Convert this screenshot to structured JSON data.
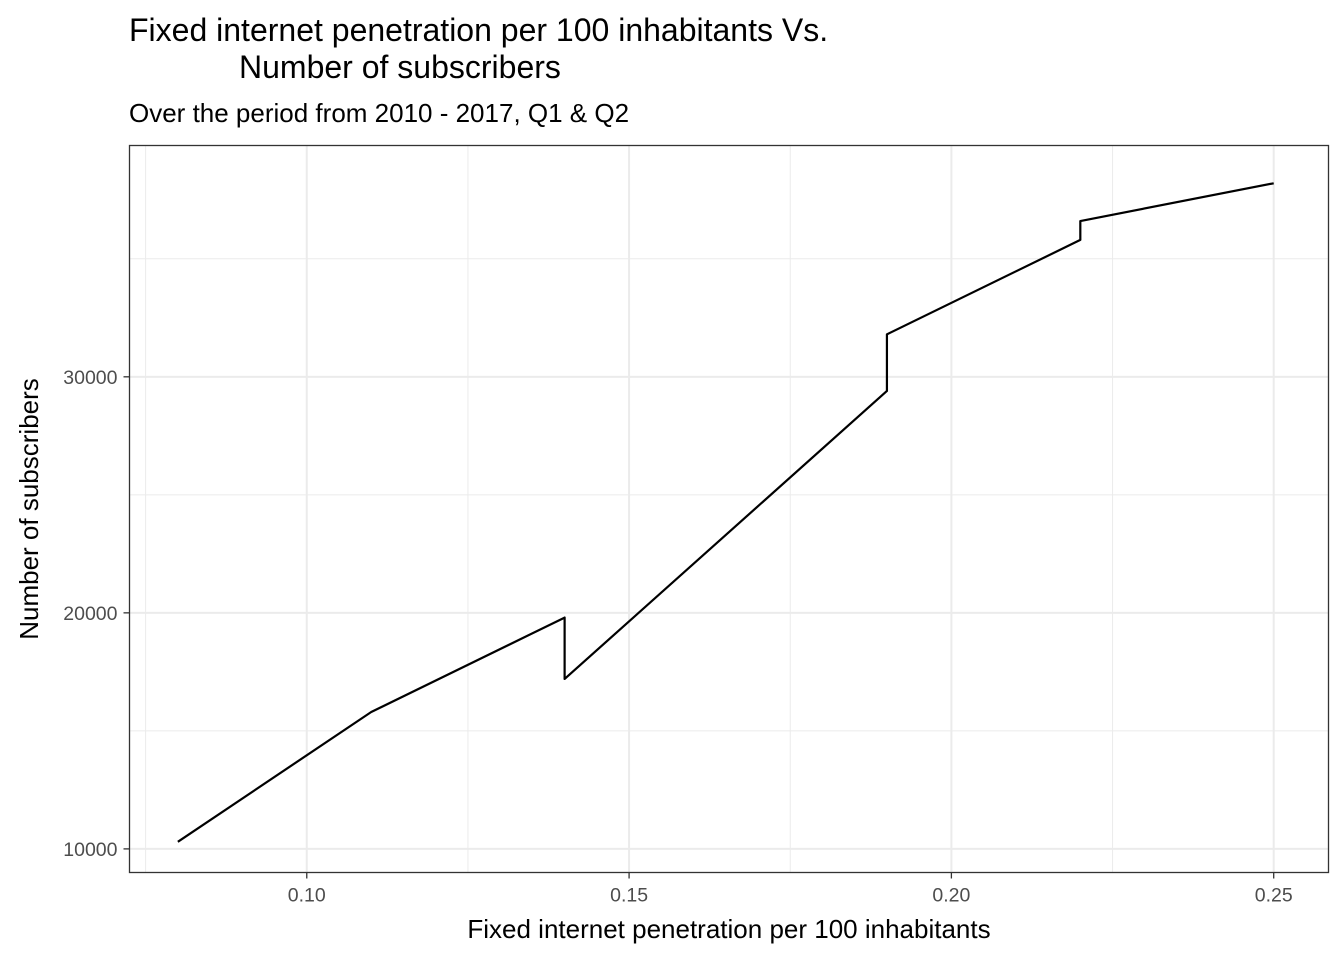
{
  "chart_data": {
    "type": "line",
    "title_lines": [
      "Fixed internet penetration per 100 inhabitants Vs.",
      "Number of subscribers"
    ],
    "subtitle": "Over the period from 2010 - 2017, Q1 & Q2",
    "xlabel": "Fixed internet penetration per 100 inhabitants",
    "ylabel": "Number of subscribers",
    "xlim": [
      0.0725,
      0.2585
    ],
    "ylim": [
      9000,
      39800
    ],
    "x_ticks": [
      0.1,
      0.15,
      0.2,
      0.25
    ],
    "x_tick_labels": [
      "0.10",
      "0.15",
      "0.20",
      "0.25"
    ],
    "y_ticks": [
      10000,
      20000,
      30000
    ],
    "y_tick_labels": [
      "10000",
      "20000",
      "30000"
    ],
    "grid": true,
    "legend": "none",
    "series": [
      {
        "color": "#000000",
        "points": [
          [
            0.08,
            10300
          ],
          [
            0.11,
            15800
          ],
          [
            0.14,
            19800
          ],
          [
            0.14,
            17200
          ],
          [
            0.19,
            29400
          ],
          [
            0.19,
            31800
          ],
          [
            0.22,
            35800
          ],
          [
            0.22,
            36600
          ],
          [
            0.25,
            38200
          ]
        ]
      }
    ]
  }
}
